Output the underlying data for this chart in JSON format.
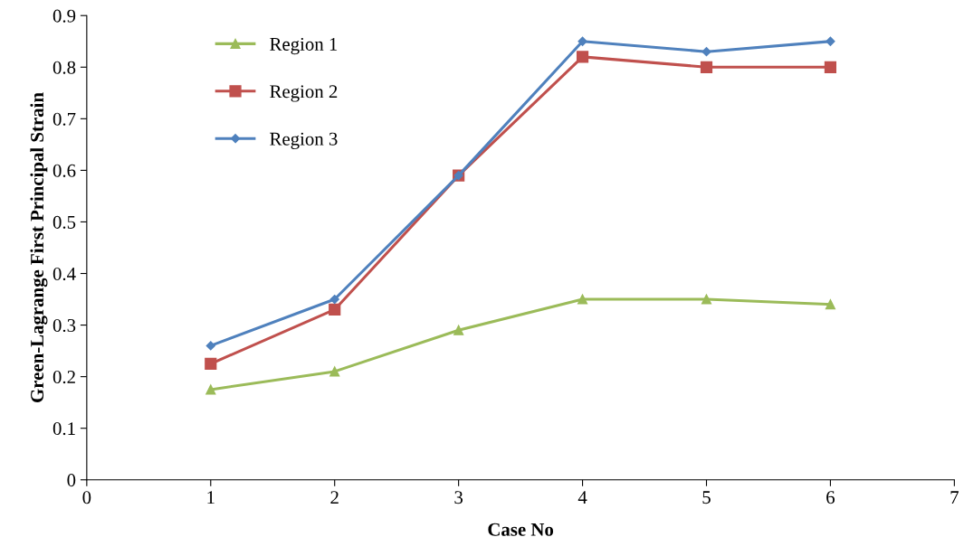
{
  "chart_data": {
    "type": "line",
    "xlabel": "Case No",
    "ylabel": "Green-Lagrange First Principal Strain",
    "x": [
      1,
      2,
      3,
      4,
      5,
      6
    ],
    "series": [
      {
        "name": "Region 1",
        "color": "#9bbb59",
        "marker": "triangle",
        "values": [
          0.175,
          0.21,
          0.29,
          0.35,
          0.35,
          0.34
        ]
      },
      {
        "name": "Region 2",
        "color": "#c0504d",
        "marker": "square",
        "values": [
          0.225,
          0.33,
          0.59,
          0.82,
          0.8,
          0.8
        ]
      },
      {
        "name": "Region 3",
        "color": "#4f81bd",
        "marker": "diamond",
        "values": [
          0.26,
          0.35,
          0.59,
          0.85,
          0.83,
          0.85
        ]
      }
    ],
    "xlim": [
      0,
      7
    ],
    "xticks": [
      0,
      1,
      2,
      3,
      4,
      5,
      6,
      7
    ],
    "ylim": [
      0,
      0.9
    ],
    "yticks": [
      0,
      0.1,
      0.2,
      0.3,
      0.4,
      0.5,
      0.6,
      0.7,
      0.8,
      0.9
    ],
    "grid": false,
    "legend": "top left",
    "line_style": "solid"
  }
}
